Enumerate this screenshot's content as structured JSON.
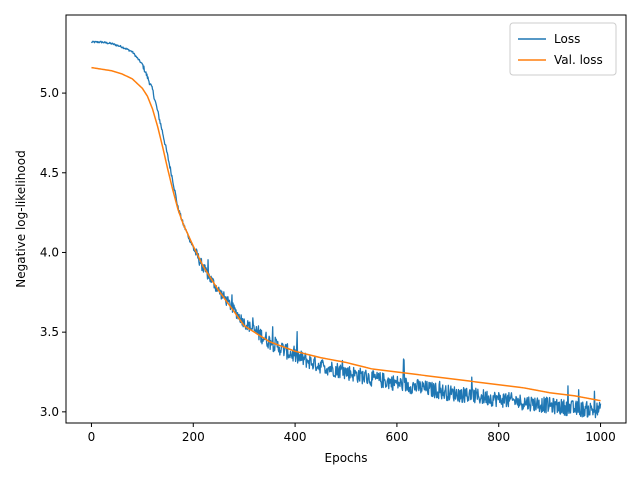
{
  "chart_data": {
    "type": "line",
    "title": "",
    "xlabel": "Epochs",
    "ylabel": "Negative log-likelihood",
    "xlim": [
      -50,
      1050
    ],
    "ylim": [
      2.93,
      5.49
    ],
    "xticks": [
      0,
      200,
      400,
      600,
      800,
      1000
    ],
    "yticks": [
      3.0,
      3.5,
      4.0,
      4.5,
      5.0
    ],
    "grid": false,
    "legend_position": "top-right",
    "series": [
      {
        "name": "Loss",
        "color": "#1f77b4",
        "noisy": true,
        "x": [
          0,
          20,
          40,
          60,
          80,
          100,
          120,
          140,
          160,
          170,
          180,
          200,
          220,
          250,
          280,
          300,
          350,
          400,
          450,
          500,
          550,
          600,
          650,
          700,
          750,
          800,
          850,
          900,
          950,
          1000
        ],
        "y": [
          5.32,
          5.32,
          5.31,
          5.29,
          5.26,
          5.18,
          5.02,
          4.75,
          4.45,
          4.28,
          4.18,
          4.03,
          3.9,
          3.76,
          3.64,
          3.56,
          3.44,
          3.35,
          3.29,
          3.25,
          3.21,
          3.18,
          3.15,
          3.12,
          3.1,
          3.08,
          3.06,
          3.04,
          3.02,
          3.01
        ]
      },
      {
        "name": "Val. loss",
        "color": "#ff7f0e",
        "noisy": false,
        "x": [
          0,
          20,
          40,
          60,
          80,
          100,
          110,
          120,
          130,
          140,
          150,
          160,
          170,
          180,
          200,
          220,
          250,
          280,
          300,
          350,
          400,
          450,
          500,
          550,
          600,
          650,
          700,
          750,
          800,
          850,
          900,
          950,
          1000
        ],
        "y": [
          5.16,
          5.15,
          5.14,
          5.12,
          5.09,
          5.03,
          4.98,
          4.9,
          4.79,
          4.66,
          4.52,
          4.39,
          4.27,
          4.18,
          4.04,
          3.91,
          3.76,
          3.63,
          3.54,
          3.44,
          3.38,
          3.34,
          3.31,
          3.27,
          3.25,
          3.23,
          3.21,
          3.19,
          3.17,
          3.15,
          3.12,
          3.1,
          3.07
        ]
      }
    ]
  }
}
